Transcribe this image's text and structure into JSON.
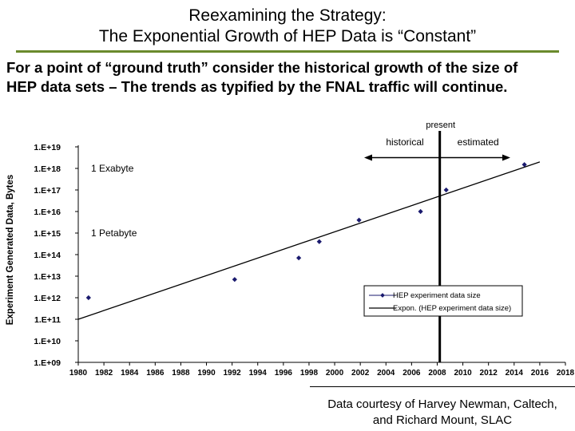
{
  "slide": {
    "title_line1": "Reexamining the Strategy:",
    "title_line2": "The Exponential Growth of HEP Data is “Constant”",
    "intro_line1": "For a point of “ground truth” consider the historical growth of the size of",
    "intro_line2": "HEP data sets – The trends as typified by the FNAL traffic will continue.",
    "credit_line1": "Data courtesy of Harvey Newman, Caltech,",
    "credit_line2": "and Richard Mount, SLAC",
    "accent_color": "#6a8a2c"
  },
  "chart_data": {
    "type": "scatter",
    "ylabel": "Experiment Generated Data, Bytes",
    "xlim": [
      1980,
      2018
    ],
    "ylim_log10": [
      9,
      19
    ],
    "y_scale": "log",
    "x_ticks": [
      "1980",
      "1982",
      "1984",
      "1986",
      "1988",
      "1990",
      "1992",
      "1994",
      "1996",
      "1998",
      "2000",
      "2002",
      "2004",
      "2006",
      "2008",
      "2010",
      "2012",
      "2014",
      "2016",
      "2018"
    ],
    "y_ticks": [
      "1.E+09",
      "1.E+10",
      "1.E+11",
      "1.E+12",
      "1.E+13",
      "1.E+14",
      "1.E+15",
      "1.E+16",
      "1.E+17",
      "1.E+18",
      "1.E+19"
    ],
    "series": [
      {
        "name": "HEP experiment data size",
        "marker_color": "#1a1a6e",
        "points": [
          {
            "x": 1980.8,
            "y": 1000000000000.0
          },
          {
            "x": 1992.2,
            "y": 7000000000000.0
          },
          {
            "x": 1997.2,
            "y": 70000000000000.0
          },
          {
            "x": 1998.8,
            "y": 400000000000000.0
          },
          {
            "x": 2001.9,
            "y": 4000000000000000.0
          },
          {
            "x": 2006.7,
            "y": 1e+16
          },
          {
            "x": 2008.7,
            "y": 1e+17
          },
          {
            "x": 2014.8,
            "y": 1.5e+18
          }
        ]
      },
      {
        "name": "Expon. (HEP experiment data size)",
        "type": "trendline",
        "points": [
          {
            "x": 1980.0,
            "y": 100000000000.0
          },
          {
            "x": 2016.0,
            "y": 2e+18
          }
        ]
      }
    ],
    "annotations": {
      "exabyte": "1 Exabyte",
      "petabyte": "1 Petabyte",
      "present": "present",
      "historical": "historical",
      "estimated": "estimated",
      "present_year": 2008.2,
      "arrow_from_year": 2002.3,
      "arrow_to_year": 2013.7,
      "arrow_level_log10": 18.5
    },
    "legend": {
      "position": "lower-right"
    },
    "grid": false
  }
}
